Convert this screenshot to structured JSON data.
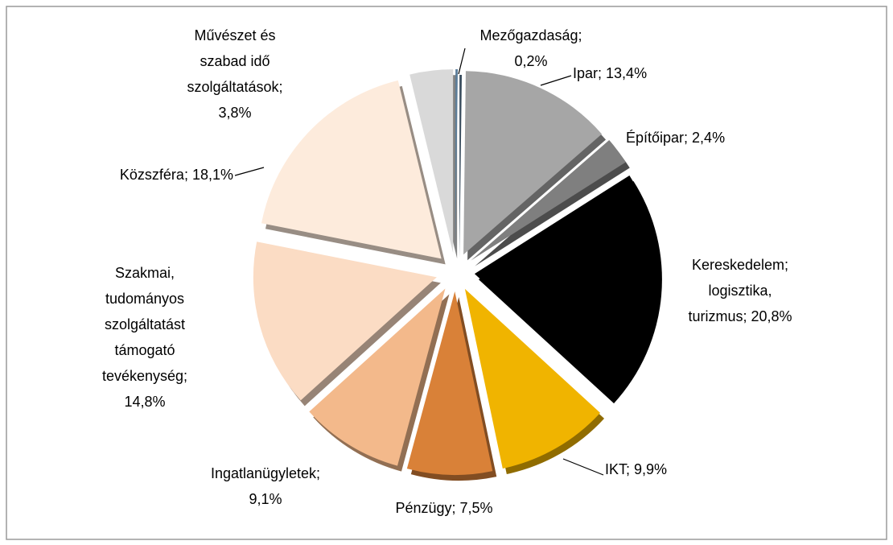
{
  "chart_data": {
    "type": "pie",
    "categories": [
      [
        "Mezőgazdaság;"
      ],
      [
        "Ipar;"
      ],
      [
        "Építőipar;"
      ],
      [
        "Kereskedelem;",
        "logisztika,",
        "turizmus;"
      ],
      [
        "IKT;"
      ],
      [
        "Pénzügy;"
      ],
      [
        "Ingatlanügyletek;"
      ],
      [
        "Szakmai,",
        "tudományos",
        "szolgáltatást",
        "támogató",
        "tevékenység;"
      ],
      [
        "Közszféra;"
      ],
      [
        "Művészet és",
        "szabad idő",
        "szolgáltatások;"
      ]
    ],
    "values": [
      0.2,
      13.4,
      2.4,
      20.8,
      9.9,
      7.5,
      9.1,
      14.8,
      18.1,
      3.8
    ],
    "value_labels": [
      "0,2%",
      "13,4%",
      "2,4%",
      "20,8%",
      "9,9%",
      "7,5%",
      "9,1%",
      "14,8%",
      "18,1%",
      "3,8%"
    ],
    "colors": [
      "#5b7d9a",
      "#a6a6a6",
      "#7f7f7f",
      "#000000",
      "#f0b400",
      "#d98138",
      "#f3b98b",
      "#fbdcc4",
      "#fdebdc",
      "#d9d9d9"
    ]
  }
}
